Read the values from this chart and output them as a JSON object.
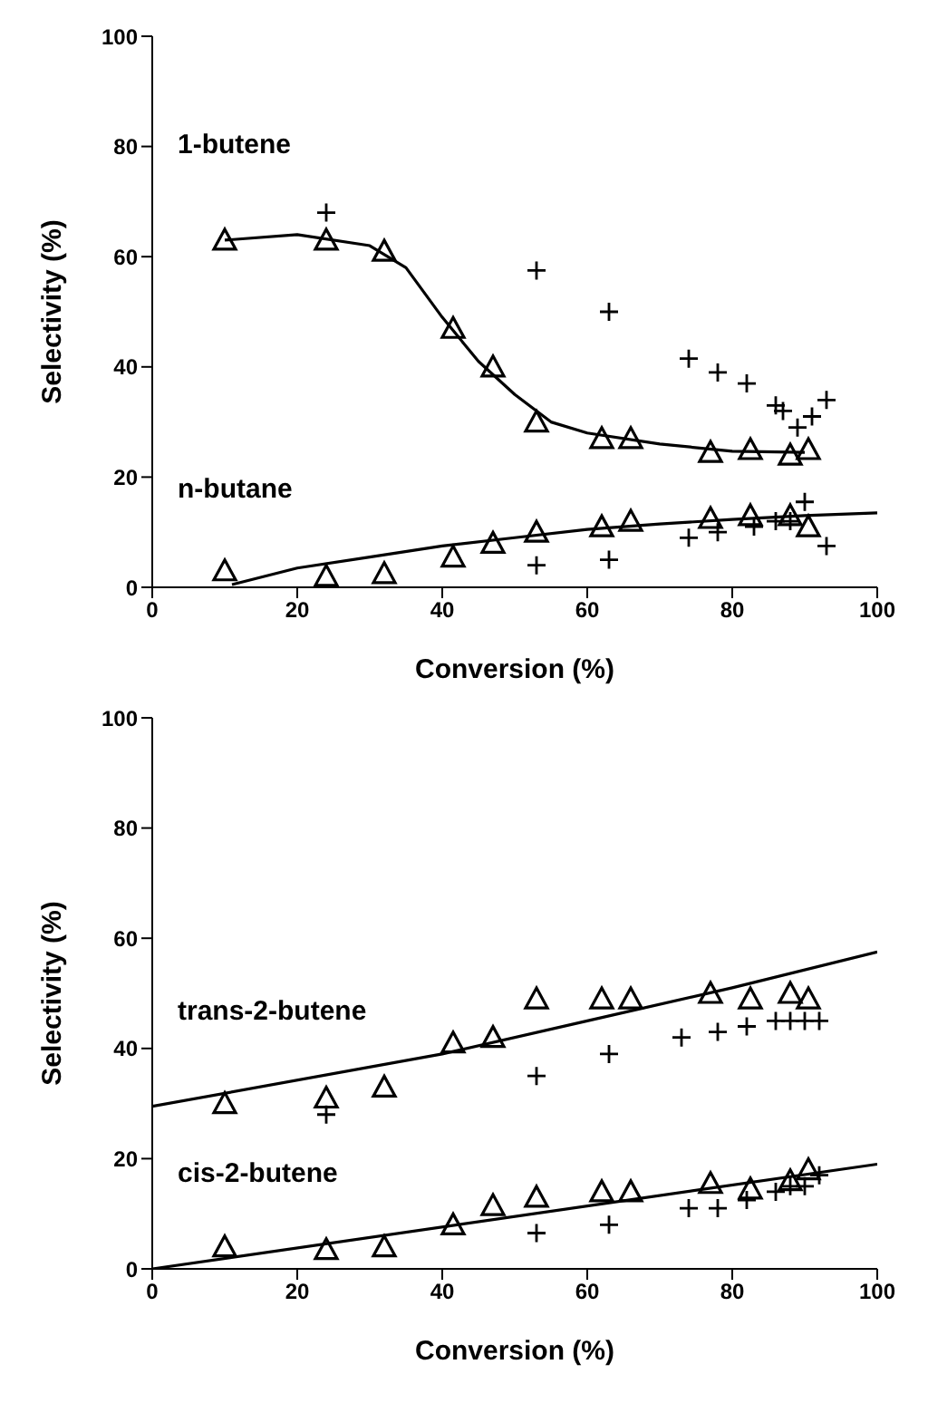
{
  "chart_data": [
    {
      "type": "scatter",
      "xlabel": "Conversion (%)",
      "ylabel": "Selectivity (%)",
      "xlim": [
        0,
        100
      ],
      "ylim": [
        0,
        100
      ],
      "xticks": [
        0,
        20,
        40,
        60,
        80,
        100
      ],
      "yticks": [
        0,
        20,
        40,
        60,
        80,
        100
      ],
      "grid": false,
      "legend": false,
      "series": [
        {
          "type": "scatter",
          "marker": "triangle",
          "color": "#000000",
          "x": [
            10,
            24,
            32,
            41.5,
            47,
            53,
            62,
            66,
            77,
            82.5,
            88,
            90.5
          ],
          "values": [
            63,
            63,
            61,
            47,
            40,
            30,
            27,
            27,
            24.5,
            25,
            24,
            25
          ]
        },
        {
          "type": "scatter",
          "marker": "cross",
          "color": "#000000",
          "x": [
            24,
            53,
            63,
            74,
            78,
            82,
            86,
            87,
            89,
            91,
            93
          ],
          "values": [
            68,
            57.5,
            50,
            41.5,
            39,
            37,
            33,
            32,
            29,
            31,
            34
          ]
        },
        {
          "type": "line",
          "name": "1-butene",
          "marker": "none",
          "color": "#000000",
          "x": [
            10,
            20,
            30,
            35,
            40,
            45,
            50,
            55,
            60,
            70,
            80,
            90
          ],
          "values": [
            63,
            64,
            62,
            58,
            49,
            41,
            35,
            30,
            28,
            26,
            24.7,
            24.5
          ]
        },
        {
          "type": "scatter",
          "marker": "triangle",
          "color": "#000000",
          "x": [
            10,
            24,
            32,
            41.5,
            47,
            53,
            62,
            66,
            77,
            82.5,
            88,
            90.5
          ],
          "values": [
            3,
            2,
            2.5,
            5.5,
            8,
            10,
            11,
            12,
            12.5,
            13,
            13,
            11
          ]
        },
        {
          "type": "scatter",
          "marker": "cross",
          "color": "#000000",
          "x": [
            53,
            63,
            74,
            78,
            83,
            86,
            88,
            90,
            93
          ],
          "values": [
            4,
            5,
            9,
            10,
            11,
            12,
            12,
            15.5,
            7.5
          ]
        },
        {
          "type": "line",
          "name": "n-butane",
          "marker": "none",
          "color": "#000000",
          "x": [
            11,
            20,
            30,
            40,
            50,
            60,
            70,
            80,
            90,
            100
          ],
          "values": [
            0.5,
            3.5,
            5.5,
            7.5,
            9,
            10.5,
            11.5,
            12.3,
            13,
            13.5
          ]
        }
      ]
    },
    {
      "type": "scatter",
      "xlabel": "Conversion (%)",
      "ylabel": "Selectivity (%)",
      "xlim": [
        0,
        100
      ],
      "ylim": [
        0,
        100
      ],
      "xticks": [
        0,
        20,
        40,
        60,
        80,
        100
      ],
      "yticks": [
        0,
        20,
        40,
        60,
        80,
        100
      ],
      "grid": false,
      "legend": false,
      "series": [
        {
          "type": "scatter",
          "marker": "triangle",
          "color": "#000000",
          "x": [
            10,
            24,
            32,
            41.5,
            47,
            53,
            62,
            66,
            77,
            82.5,
            88,
            90.5
          ],
          "values": [
            30,
            31,
            33,
            41,
            42,
            49,
            49,
            49,
            50,
            49,
            50,
            49
          ]
        },
        {
          "type": "scatter",
          "marker": "cross",
          "color": "#000000",
          "x": [
            24,
            53,
            63,
            73,
            78,
            82,
            86,
            88,
            90,
            92
          ],
          "values": [
            28,
            35,
            39,
            42,
            43,
            44,
            45,
            45,
            45,
            45
          ]
        },
        {
          "type": "line",
          "name": "trans-2-butene",
          "marker": "none",
          "color": "#000000",
          "x": [
            0,
            40,
            60,
            80,
            100
          ],
          "values": [
            29.5,
            39,
            45,
            51,
            57.5
          ]
        },
        {
          "type": "scatter",
          "marker": "triangle",
          "color": "#000000",
          "x": [
            10,
            24,
            32,
            41.5,
            47,
            53,
            62,
            66,
            77,
            82.5,
            88,
            90.5
          ],
          "values": [
            4,
            3.5,
            4,
            8,
            11.5,
            13,
            14,
            14,
            15.5,
            14.5,
            16,
            18
          ]
        },
        {
          "type": "scatter",
          "marker": "cross",
          "color": "#000000",
          "x": [
            53,
            63,
            74,
            78,
            82,
            86,
            88,
            90,
            92
          ],
          "values": [
            6.5,
            8,
            11,
            11,
            12.5,
            14,
            15,
            15,
            17
          ]
        },
        {
          "type": "line",
          "name": "cis-2-butene",
          "marker": "none",
          "color": "#000000",
          "x": [
            0,
            100
          ],
          "values": [
            0,
            19
          ]
        }
      ]
    }
  ]
}
